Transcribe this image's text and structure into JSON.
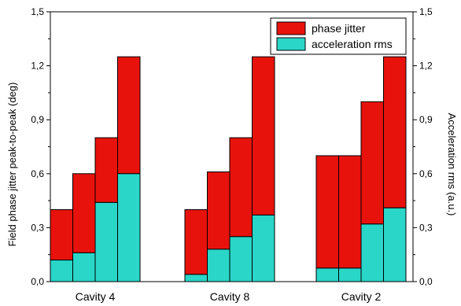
{
  "chart_data": {
    "type": "bar",
    "stacked": true,
    "groups": [
      {
        "label": "Cavity 4",
        "bars": [
          {
            "acceleration_rms": 0.12,
            "total": 0.4
          },
          {
            "acceleration_rms": 0.16,
            "total": 0.6
          },
          {
            "acceleration_rms": 0.44,
            "total": 0.8
          },
          {
            "acceleration_rms": 0.6,
            "total": 1.25
          }
        ]
      },
      {
        "label": "Cavity 8",
        "bars": [
          {
            "acceleration_rms": 0.04,
            "total": 0.4
          },
          {
            "acceleration_rms": 0.18,
            "total": 0.61
          },
          {
            "acceleration_rms": 0.25,
            "total": 0.8
          },
          {
            "acceleration_rms": 0.37,
            "total": 1.25
          }
        ]
      },
      {
        "label": "Cavity 2",
        "bars": [
          {
            "acceleration_rms": 0.075,
            "total": 0.7
          },
          {
            "acceleration_rms": 0.075,
            "total": 0.7
          },
          {
            "acceleration_rms": 0.32,
            "total": 1.0
          },
          {
            "acceleration_rms": 0.41,
            "total": 1.25
          }
        ]
      }
    ],
    "series": [
      {
        "name": "phase jitter",
        "color": "#e8120c"
      },
      {
        "name": "acceleration rms",
        "color": "#2ad6c8"
      }
    ],
    "ylabel_left": "Field phase jitter peak-to-peak (deg)",
    "ylabel_right": "Acceleration rms (a.u.)",
    "ylim": [
      0,
      1.5
    ],
    "yticks": [
      "0,0",
      "0,3",
      "0,6",
      "0,9",
      "1,2",
      "1,5"
    ],
    "ytick_values": [
      0,
      0.3,
      0.6,
      0.9,
      1.2,
      1.5
    ],
    "legend_position": "top-right",
    "grid": false
  }
}
